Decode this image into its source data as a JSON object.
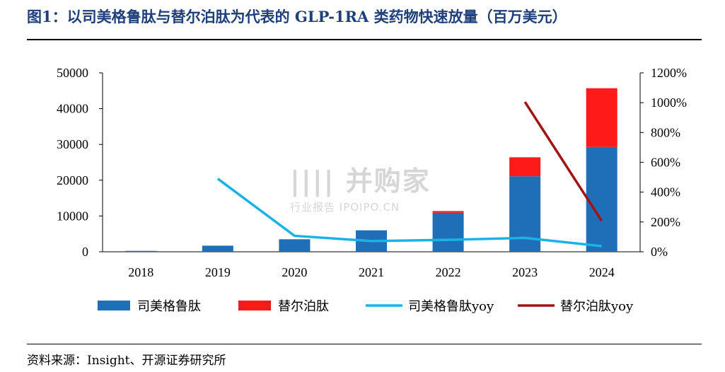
{
  "title": "图1：以司美格鲁肽与替尔泊肽为代表的 GLP-1RA 类药物快速放量（百万美元）",
  "source": "资料来源：Insight、开源证券研究所",
  "watermark": {
    "main": "|||| 并购家",
    "sub": "行业报告 IPOIPO.CN"
  },
  "chart_data": {
    "type": "bar",
    "stacked": true,
    "categories": [
      "2018",
      "2019",
      "2020",
      "2021",
      "2022",
      "2023",
      "2024"
    ],
    "y_left": {
      "ylim": [
        0,
        50000
      ],
      "ticks": [
        "0",
        "10000",
        "20000",
        "30000",
        "40000",
        "50000"
      ],
      "tick_values": [
        0,
        10000,
        20000,
        30000,
        40000,
        50000
      ]
    },
    "y_right": {
      "ylim": [
        0,
        12
      ],
      "ticks": [
        "0%",
        "200%",
        "400%",
        "600%",
        "800%",
        "1000%",
        "1200%"
      ],
      "tick_values": [
        0,
        2,
        4,
        6,
        8,
        10,
        12
      ]
    },
    "series": [
      {
        "name": "司美格鲁肽",
        "kind": "bar",
        "axis": "left",
        "color": "#1f6fb8",
        "values": [
          250,
          1700,
          3500,
          6000,
          10900,
          21100,
          29300
        ]
      },
      {
        "name": "替尔泊肽",
        "kind": "bar",
        "axis": "left",
        "color": "#ff1a1a",
        "values": [
          0,
          0,
          0,
          0,
          480,
          5300,
          16400
        ]
      },
      {
        "name": "司美格鲁肽yoy",
        "kind": "line",
        "axis": "right",
        "color": "#1ab3e6",
        "values": [
          null,
          4.9,
          1.07,
          0.72,
          0.8,
          0.93,
          0.38
        ]
      },
      {
        "name": "替尔泊肽yoy",
        "kind": "line",
        "axis": "right",
        "color": "#a01414",
        "values": [
          null,
          null,
          null,
          null,
          null,
          10.05,
          2.07
        ]
      }
    ],
    "grid": false,
    "legend_position": "bottom"
  }
}
